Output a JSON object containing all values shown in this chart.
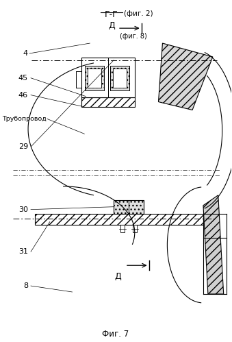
{
  "bg_color": "#ffffff",
  "black": "#000000",
  "title_gg": "Г-Г",
  "title_fig2": "(фиг. 2)",
  "label_d_top": "Д",
  "label_fig8": "(фиг. 8)",
  "label_4": "4",
  "label_45": "45",
  "label_46": "46",
  "label_truba": "Трубопровод",
  "label_29": "29",
  "label_30": "30",
  "label_31": "31",
  "label_8": "8",
  "label_d_bot": "Д",
  "caption": "Фиг. 7"
}
